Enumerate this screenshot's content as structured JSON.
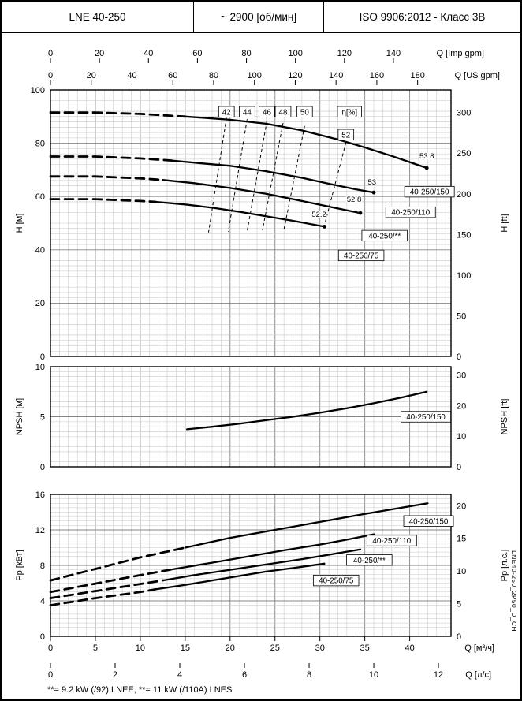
{
  "header": {
    "model": "LNE 40-250",
    "speed": "~ 2900 [об/мин]",
    "standard": "ISO 9906:2012 - Класс 3В"
  },
  "footer": {
    "note": "**= 9.2 kW (/92) LNEE,  **= 11 kW (/110A) LNES"
  },
  "watermark": "LNE40-250_2P50_D_CH",
  "chart_data": [
    {
      "type": "line",
      "name": "head",
      "xlim": [
        0,
        44.6
      ],
      "ylim": [
        0,
        100
      ],
      "grid": {
        "x_minor": 1,
        "x_major": 5,
        "y_minor": 2,
        "y_major": 20
      },
      "left_axis": {
        "label": "H [м]",
        "ticks": [
          0,
          20,
          40,
          60,
          80,
          100
        ]
      },
      "right_axis": {
        "label": "H [ft]",
        "ticks": [
          0,
          50,
          100,
          150,
          200,
          250,
          300
        ],
        "factor": 0.3048
      },
      "top_axes": [
        {
          "label": "Q [Imp gpm]",
          "ticks": [
            0,
            20,
            40,
            60,
            80,
            100,
            120,
            140
          ],
          "m3h_per_unit": 0.27276
        },
        {
          "label": "Q [US gpm]",
          "ticks": [
            0,
            20,
            40,
            60,
            80,
            100,
            120,
            140,
            160,
            180
          ],
          "m3h_per_unit": 0.22712
        }
      ],
      "series": [
        {
          "name": "40-250/150",
          "dash_until": 15,
          "points": [
            [
              0,
              91.5
            ],
            [
              5,
              91.5
            ],
            [
              10,
              91.0
            ],
            [
              15,
              90.0
            ],
            [
              18,
              89.3
            ],
            [
              20,
              88.8
            ],
            [
              24,
              87.3
            ],
            [
              28,
              84.8
            ],
            [
              32,
              81.4
            ],
            [
              35,
              78.4
            ],
            [
              38,
              75.2
            ],
            [
              40,
              72.9
            ],
            [
              41.9,
              70.7
            ]
          ],
          "end_label": "53.8",
          "end_label_pos": [
            41.9,
            74.3
          ],
          "label": {
            "text": "40-250/150",
            "x": 42.2,
            "y": 61.8
          }
        },
        {
          "name": "40-250/110",
          "dash_until": 13.5,
          "points": [
            [
              0,
              75.0
            ],
            [
              5,
              75.0
            ],
            [
              10,
              74.3
            ],
            [
              13.5,
              73.5
            ],
            [
              17,
              72.4
            ],
            [
              20,
              71.5
            ],
            [
              24,
              69.5
            ],
            [
              28,
              67.0
            ],
            [
              31,
              64.8
            ],
            [
              34,
              62.7
            ],
            [
              36,
              61.5
            ]
          ],
          "end_label": "53",
          "end_label_pos": [
            35.8,
            64.5
          ],
          "label": {
            "text": "40-250/110",
            "x": 40.1,
            "y": 54.1
          }
        },
        {
          "name": "40-250/**",
          "dash_until": 12.5,
          "points": [
            [
              0,
              67.5
            ],
            [
              5,
              67.5
            ],
            [
              10,
              66.8
            ],
            [
              12.5,
              66.2
            ],
            [
              16,
              65.0
            ],
            [
              20,
              63.2
            ],
            [
              24,
              61.0
            ],
            [
              28,
              58.3
            ],
            [
              31,
              56.2
            ],
            [
              34.5,
              53.8
            ]
          ],
          "end_label": "52.8",
          "end_label_pos": [
            33.8,
            58.0
          ],
          "label": {
            "text": "40-250/**",
            "x": 37.2,
            "y": 45.3
          }
        },
        {
          "name": "40-250/75",
          "dash_until": 11.7,
          "points": [
            [
              0,
              59.0
            ],
            [
              5,
              59.0
            ],
            [
              10,
              58.3
            ],
            [
              11.7,
              58.0
            ],
            [
              15,
              57.0
            ],
            [
              18,
              55.8
            ],
            [
              21,
              54.3
            ],
            [
              24,
              52.6
            ],
            [
              27,
              50.9
            ],
            [
              30.5,
              48.7
            ]
          ],
          "end_label": "52.2",
          "end_label_pos": [
            29.9,
            52.3
          ],
          "label": {
            "text": "40-250/75",
            "x": 34.6,
            "y": 37.9
          }
        }
      ],
      "efficiency": {
        "unit_label": "η[%]",
        "unit_pos": [
          33.3,
          91.8
        ],
        "lines": [
          {
            "label": "42",
            "label_pos": [
              19.6,
              91.8
            ],
            "from": [
              19.6,
              89.5
            ],
            "to": [
              17.6,
              46.5
            ]
          },
          {
            "label": "44",
            "label_pos": [
              21.9,
              91.8
            ],
            "from": [
              21.9,
              89.0
            ],
            "to": [
              19.8,
              46.8
            ]
          },
          {
            "label": "46",
            "label_pos": [
              24.1,
              91.8
            ],
            "from": [
              24.1,
              88.3
            ],
            "to": [
              21.9,
              47.0
            ]
          },
          {
            "label": "48",
            "label_pos": [
              25.9,
              91.8
            ],
            "from": [
              25.9,
              87.6
            ],
            "to": [
              23.6,
              47.3
            ]
          },
          {
            "label": "50",
            "label_pos": [
              28.3,
              91.8
            ],
            "from": [
              28.3,
              86.5
            ],
            "to": [
              26.0,
              47.6
            ]
          },
          {
            "label": "52",
            "label_pos": [
              32.9,
              83.2
            ],
            "from": [
              32.9,
              80.3
            ],
            "to": [
              30.4,
              47.8
            ]
          }
        ]
      }
    },
    {
      "type": "line",
      "name": "npsh",
      "xlim": [
        0,
        44.6
      ],
      "ylim": [
        0,
        10
      ],
      "grid": {
        "x_minor": 1,
        "x_major": 5,
        "y_minor": 0.5,
        "y_major": 5
      },
      "left_axis": {
        "label": "NPSH [м]",
        "ticks": [
          0,
          5,
          10
        ]
      },
      "right_axis": {
        "label": "NPSH [ft]",
        "ticks": [
          0,
          10,
          20,
          30
        ],
        "factor": 0.3048
      },
      "series": [
        {
          "name": "40-250/150",
          "points": [
            [
              15.2,
              3.75
            ],
            [
              18,
              4.0
            ],
            [
              21,
              4.3
            ],
            [
              24,
              4.65
            ],
            [
              27,
              5.0
            ],
            [
              30,
              5.4
            ],
            [
              33,
              5.85
            ],
            [
              36,
              6.35
            ],
            [
              39,
              6.9
            ],
            [
              41.9,
              7.5
            ]
          ],
          "label": {
            "text": "40-250/150",
            "x": 41.8,
            "y": 5.0
          }
        }
      ]
    },
    {
      "type": "line",
      "name": "power",
      "xlim": [
        0,
        44.6
      ],
      "ylim": [
        0,
        16
      ],
      "grid": {
        "x_minor": 1,
        "x_major": 5,
        "y_minor": 0.5,
        "y_major": 4
      },
      "left_axis": {
        "label": "Pp [кВт]",
        "ticks": [
          0,
          4,
          8,
          12,
          16
        ]
      },
      "right_axis": {
        "label": "Pp [л.с.]",
        "ticks": [
          0,
          5,
          10,
          15,
          20
        ],
        "factor": 0.7355
      },
      "bottom_axes": [
        {
          "label": "Q [м³/ч]",
          "ticks": [
            0,
            5,
            10,
            15,
            20,
            25,
            30,
            35,
            40
          ],
          "m3h_per_unit": 1
        },
        {
          "label": "Q [л/с]",
          "ticks": [
            0,
            2,
            4,
            6,
            8,
            10,
            12
          ],
          "m3h_per_unit": 3.6
        }
      ],
      "series": [
        {
          "name": "40-250/150",
          "dash_until": 15,
          "points": [
            [
              0,
              6.3
            ],
            [
              5,
              7.6
            ],
            [
              10,
              8.9
            ],
            [
              15,
              10.0
            ],
            [
              20,
              11.1
            ],
            [
              25,
              12.0
            ],
            [
              30,
              12.9
            ],
            [
              35,
              13.8
            ],
            [
              38.5,
              14.4
            ],
            [
              42,
              15.0
            ]
          ],
          "label": {
            "text": "40-250/150",
            "x": 42.1,
            "y": 13.0
          }
        },
        {
          "name": "40-250/110",
          "dash_until": 13.5,
          "points": [
            [
              0,
              5.0
            ],
            [
              5,
              5.95
            ],
            [
              10,
              6.9
            ],
            [
              13.5,
              7.55
            ],
            [
              18,
              8.3
            ],
            [
              22,
              9.0
            ],
            [
              26,
              9.7
            ],
            [
              30,
              10.35
            ],
            [
              33,
              10.9
            ],
            [
              36,
              11.5
            ]
          ],
          "label": {
            "text": "40-250/110",
            "x": 38.0,
            "y": 10.8
          }
        },
        {
          "name": "40-250/**",
          "dash_until": 12.5,
          "points": [
            [
              0,
              4.3
            ],
            [
              5,
              5.1
            ],
            [
              10,
              5.9
            ],
            [
              12.5,
              6.3
            ],
            [
              16,
              6.9
            ],
            [
              20,
              7.5
            ],
            [
              24,
              8.1
            ],
            [
              28,
              8.7
            ],
            [
              31,
              9.2
            ],
            [
              34.5,
              9.8
            ]
          ],
          "label": {
            "text": "40-250/**",
            "x": 35.5,
            "y": 8.6
          }
        },
        {
          "name": "40-250/75",
          "dash_until": 11.7,
          "points": [
            [
              0,
              3.5
            ],
            [
              5,
              4.3
            ],
            [
              10,
              5.0
            ],
            [
              11.7,
              5.3
            ],
            [
              15,
              5.8
            ],
            [
              18,
              6.3
            ],
            [
              21,
              6.8
            ],
            [
              24,
              7.3
            ],
            [
              27,
              7.7
            ],
            [
              30.5,
              8.2
            ]
          ],
          "label": {
            "text": "40-250/75",
            "x": 31.8,
            "y": 6.3
          }
        }
      ]
    }
  ]
}
